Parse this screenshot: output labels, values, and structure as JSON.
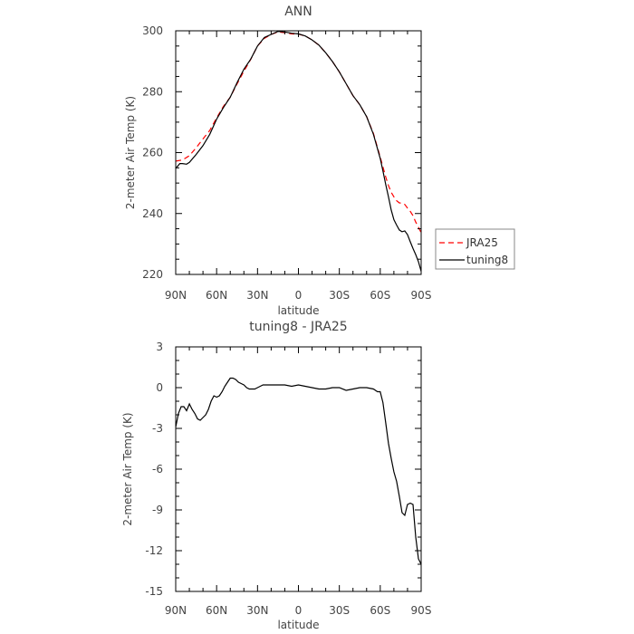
{
  "chart_data": [
    {
      "type": "line",
      "title": "ANN",
      "xlabel": "latitude",
      "ylabel": "2-meter Air Temp (K)",
      "xlim": [
        90,
        -90
      ],
      "ylim": [
        220,
        300
      ],
      "xticks": [
        90,
        60,
        30,
        0,
        -30,
        -60,
        -90
      ],
      "xtick_labels": [
        "90N",
        "60N",
        "30N",
        "0",
        "30S",
        "60S",
        "90S"
      ],
      "yticks": [
        220,
        240,
        260,
        280,
        300
      ],
      "ytick_labels": [
        "220",
        "240",
        "260",
        "280",
        "300"
      ],
      "legend_position": "right-bottom-outside",
      "series": [
        {
          "name": "JRA25",
          "color": "#ff0000",
          "style": "dashed",
          "x": [
            90,
            85,
            80,
            75,
            70,
            65,
            60,
            55,
            50,
            45,
            40,
            35,
            30,
            25,
            20,
            15,
            10,
            5,
            0,
            -5,
            -10,
            -15,
            -20,
            -25,
            -30,
            -35,
            -40,
            -45,
            -50,
            -55,
            -60,
            -62,
            -64,
            -66,
            -68,
            -70,
            -72,
            -74,
            -76,
            -78,
            -80,
            -82,
            -84,
            -86,
            -88,
            -90
          ],
          "y": [
            257.2,
            257.6,
            259.0,
            261.6,
            264.5,
            267.3,
            271.4,
            275.2,
            278.2,
            282.6,
            286.7,
            290.6,
            295.0,
            297.5,
            298.8,
            299.6,
            299.4,
            299.0,
            298.9,
            298.3,
            297.0,
            295.3,
            292.8,
            289.9,
            286.5,
            282.6,
            278.7,
            275.7,
            271.8,
            266.3,
            258.5,
            255.3,
            252.0,
            249.2,
            247.0,
            245.5,
            244.2,
            243.5,
            243.4,
            243.0,
            241.8,
            240.7,
            239.3,
            237.2,
            235.5,
            233.7
          ]
        },
        {
          "name": "tuning8",
          "color": "#000000",
          "style": "solid",
          "x": [
            90,
            87,
            85,
            82,
            80,
            75,
            70,
            65,
            60,
            55,
            50,
            45,
            40,
            35,
            30,
            25,
            20,
            15,
            10,
            5,
            0,
            -5,
            -10,
            -15,
            -20,
            -25,
            -30,
            -35,
            -40,
            -45,
            -50,
            -55,
            -60,
            -62,
            -64,
            -66,
            -68,
            -70,
            -72,
            -74,
            -76,
            -78,
            -80,
            -82,
            -84,
            -86,
            -88,
            -90
          ],
          "y": [
            254.8,
            256.4,
            256.4,
            256.2,
            256.8,
            259.4,
            262.3,
            266.0,
            271.0,
            274.8,
            278.2,
            283.0,
            287.4,
            290.7,
            295.0,
            297.8,
            298.8,
            299.8,
            299.6,
            299.2,
            299.0,
            298.3,
            297.0,
            295.3,
            292.8,
            289.9,
            286.5,
            282.6,
            278.7,
            275.7,
            271.8,
            266.0,
            258.1,
            254.0,
            249.5,
            245.5,
            241.2,
            238.0,
            236.2,
            234.6,
            234.0,
            234.3,
            233.1,
            230.7,
            228.5,
            226.5,
            224.2,
            221.0
          ]
        }
      ]
    },
    {
      "type": "line",
      "title": "tuning8 - JRA25",
      "xlabel": "latitude",
      "ylabel": "2-meter Air Temp (K)",
      "xlim": [
        90,
        -90
      ],
      "ylim": [
        -15,
        3
      ],
      "xticks": [
        90,
        60,
        30,
        0,
        -30,
        -60,
        -90
      ],
      "xtick_labels": [
        "90N",
        "60N",
        "30N",
        "0",
        "30S",
        "60S",
        "90S"
      ],
      "yticks": [
        -15,
        -12,
        -9,
        -6,
        -3,
        0,
        3
      ],
      "ytick_labels": [
        "-15",
        "-12",
        "-9",
        "-6",
        "-3",
        "0",
        "3"
      ],
      "series": [
        {
          "color": "#000000",
          "style": "solid",
          "x": [
            90,
            88,
            86,
            84,
            82,
            80,
            78,
            76,
            74,
            72,
            70,
            68,
            66,
            64,
            62,
            60,
            58,
            56,
            54,
            52,
            50,
            48,
            46,
            44,
            42,
            40,
            38,
            36,
            34,
            32,
            30,
            28,
            26,
            24,
            22,
            20,
            15,
            10,
            5,
            0,
            -5,
            -10,
            -15,
            -20,
            -25,
            -30,
            -35,
            -40,
            -45,
            -50,
            -55,
            -58,
            -60,
            -62,
            -64,
            -66,
            -68,
            -70,
            -72,
            -74,
            -76,
            -78,
            -80,
            -82,
            -84,
            -86,
            -88,
            -90
          ],
          "y": [
            -2.9,
            -1.9,
            -1.4,
            -1.4,
            -1.7,
            -1.2,
            -1.6,
            -1.9,
            -2.3,
            -2.4,
            -2.2,
            -2.0,
            -1.6,
            -1.0,
            -0.6,
            -0.7,
            -0.6,
            -0.3,
            0.1,
            0.4,
            0.7,
            0.7,
            0.6,
            0.4,
            0.3,
            0.2,
            0.0,
            -0.1,
            -0.1,
            -0.1,
            0.0,
            0.1,
            0.2,
            0.2,
            0.2,
            0.2,
            0.2,
            0.2,
            0.1,
            0.2,
            0.1,
            0.0,
            -0.1,
            -0.1,
            0.0,
            0.0,
            -0.2,
            -0.1,
            0.0,
            0.0,
            -0.1,
            -0.3,
            -0.3,
            -1.1,
            -2.6,
            -4.1,
            -5.2,
            -6.2,
            -6.9,
            -8.0,
            -9.2,
            -9.4,
            -8.6,
            -8.5,
            -8.6,
            -11.0,
            -12.6,
            -13.0
          ]
        }
      ]
    }
  ]
}
